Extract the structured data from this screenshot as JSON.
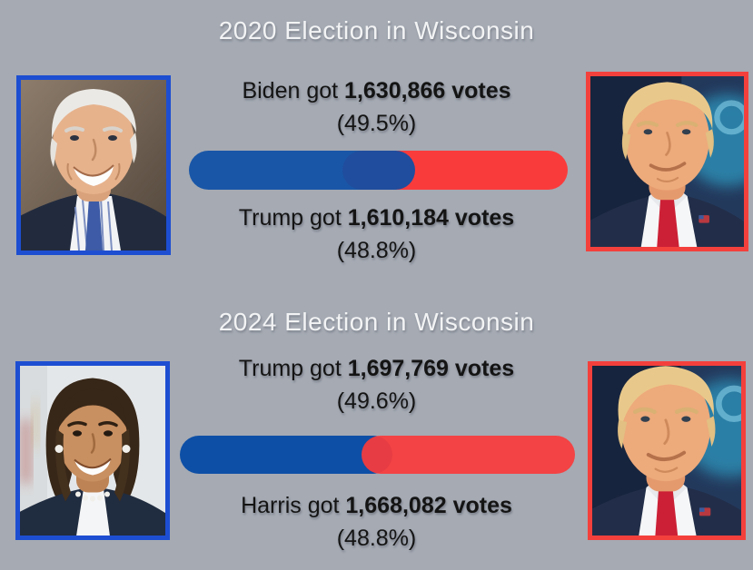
{
  "colors": {
    "background": "#a5aab3",
    "title_text": "#f2f3f4",
    "body_text": "#141414",
    "border_blue": "#1d4ed2",
    "border_red": "#f4403c",
    "dem_blue": "#0d4fa6",
    "rep_red": "#fa3b3b"
  },
  "sections": [
    {
      "title": "2020 Election in Wisconsin",
      "winner": {
        "prefix": "Biden got ",
        "value": "1,630,866 votes",
        "pct": "(49.5%)"
      },
      "loser": {
        "prefix": "Trump got ",
        "value": "1,610,184 votes",
        "pct": "(48.8%)"
      },
      "bar": {
        "blue_width_pct": 59.7,
        "red_start_pct": 40.5,
        "top_layer": "blue"
      },
      "left_photo_person": "Joe Biden",
      "right_photo_person": "Donald Trump"
    },
    {
      "title": "2024 Election in Wisconsin",
      "winner": {
        "prefix": "Trump got ",
        "value": "1,697,769 votes",
        "pct": "(49.6%)"
      },
      "loser": {
        "prefix": "Harris got ",
        "value": "1,668,082 votes",
        "pct": "(48.8%)"
      },
      "bar": {
        "blue_width_pct": 53.8,
        "red_start_pct": 46.0,
        "top_layer": "red"
      },
      "left_photo_person": "Kamala Harris",
      "right_photo_person": "Donald Trump"
    }
  ],
  "chart_data": [
    {
      "type": "bar",
      "title": "2020 Election in Wisconsin",
      "categories": [
        "Biden",
        "Trump"
      ],
      "series": [
        {
          "name": "Votes",
          "values": [
            1630866,
            1610184
          ]
        }
      ],
      "percentages": [
        49.5,
        48.8
      ],
      "colors": {
        "Biden": "#0d4fa6",
        "Trump": "#fa3b3b"
      },
      "legend_position": "none",
      "grid": false
    },
    {
      "type": "bar",
      "title": "2024 Election in Wisconsin",
      "categories": [
        "Trump",
        "Harris"
      ],
      "series": [
        {
          "name": "Votes",
          "values": [
            1697769,
            1668082
          ]
        }
      ],
      "percentages": [
        49.6,
        48.8
      ],
      "colors": {
        "Trump": "#fa3b3b",
        "Harris": "#0d4fa6"
      },
      "legend_position": "none",
      "grid": false
    }
  ]
}
